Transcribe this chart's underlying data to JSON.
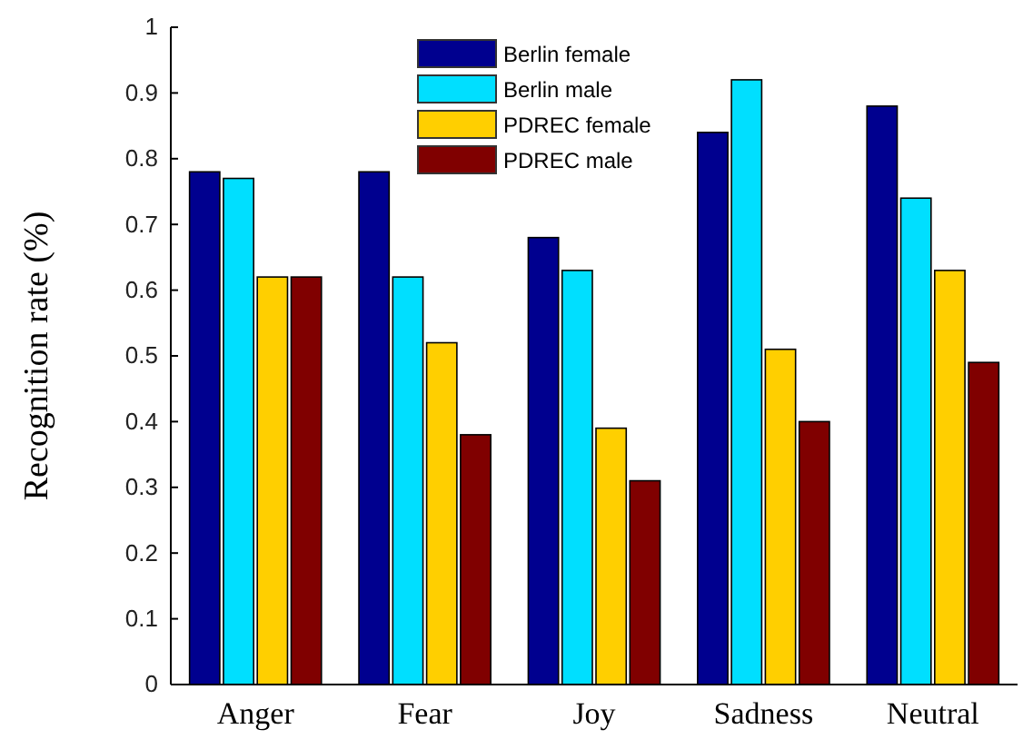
{
  "chart_data": {
    "type": "bar",
    "ylabel": "Recognition rate (%)",
    "categories": [
      "Anger",
      "Fear",
      "Joy",
      "Sadness",
      "Neutral"
    ],
    "series": [
      {
        "name": "Berlin female",
        "color": "#00008f",
        "values": [
          0.78,
          0.78,
          0.68,
          0.84,
          0.88
        ]
      },
      {
        "name": "Berlin male",
        "color": "#00dfff",
        "values": [
          0.77,
          0.62,
          0.63,
          0.92,
          0.74
        ]
      },
      {
        "name": "PDREC female",
        "color": "#ffcf00",
        "values": [
          0.62,
          0.52,
          0.39,
          0.51,
          0.63
        ]
      },
      {
        "name": "PDREC male",
        "color": "#800000",
        "values": [
          0.62,
          0.38,
          0.31,
          0.4,
          0.49
        ]
      }
    ],
    "ylim": [
      0,
      1
    ],
    "yticks": [
      0,
      0.1,
      0.2,
      0.3,
      0.4,
      0.5,
      0.6,
      0.7,
      0.8,
      0.9,
      1
    ],
    "legend": "top",
    "grid": false
  }
}
